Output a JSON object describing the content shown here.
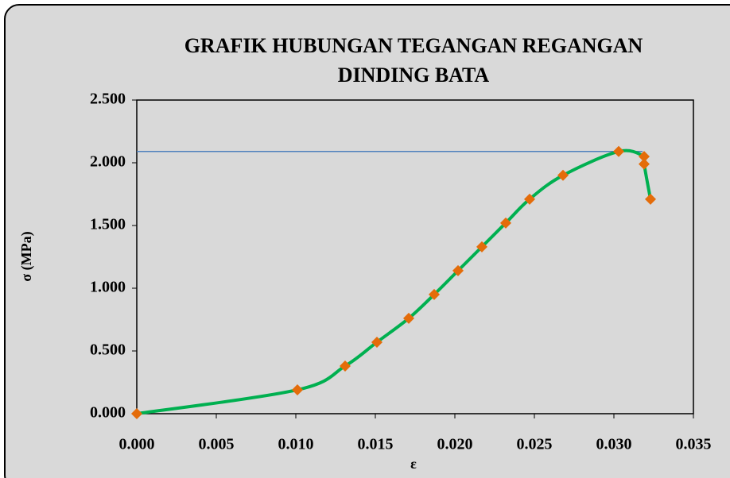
{
  "chart_data": {
    "type": "line",
    "title": [
      "GRAFIK HUBUNGAN TEGANGAN REGANGAN",
      "DINDING BATA"
    ],
    "x_label": "ε",
    "y_label": "σ (MPa)",
    "x": [
      0,
      0.0101,
      0.0131,
      0.0151,
      0.0171,
      0.0187,
      0.0202,
      0.0217,
      0.0232,
      0.0247,
      0.0268,
      0.0303,
      0.0319,
      0.0319,
      0.0323
    ],
    "series": [
      {
        "color": "#00b050",
        "marker_color": "#e46c0a",
        "values": [
          0,
          0.19,
          0.38,
          0.57,
          0.76,
          0.95,
          1.14,
          1.33,
          1.52,
          1.71,
          1.9,
          2.09,
          2.05,
          1.99,
          1.71
        ]
      }
    ],
    "hline": {
      "y": 2.09,
      "x": [
        0,
        0.0318
      ],
      "color": "#4f81bd"
    },
    "xlim": [
      0,
      0.035
    ],
    "xticks": [
      {
        "value": 0,
        "label": "0.000"
      },
      {
        "value": 0.005,
        "label": "0.005"
      },
      {
        "value": 0.01,
        "label": "0.010"
      },
      {
        "value": 0.015,
        "label": "0.015"
      },
      {
        "value": 0.02,
        "label": "0.020"
      },
      {
        "value": 0.025,
        "label": "0.025"
      },
      {
        "value": 0.03,
        "label": "0.030"
      },
      {
        "value": 0.035,
        "label": "0.035"
      }
    ],
    "ylim": [
      0,
      2.5
    ],
    "yticks": [
      {
        "value": 0,
        "label": "0.000"
      },
      {
        "value": 0.5,
        "label": "0.500"
      },
      {
        "value": 1,
        "label": "1.000"
      },
      {
        "value": 1.5,
        "label": "1.500"
      },
      {
        "value": 2,
        "label": "2.000"
      },
      {
        "value": 2.5,
        "label": "2.500"
      }
    ],
    "grid": false
  }
}
